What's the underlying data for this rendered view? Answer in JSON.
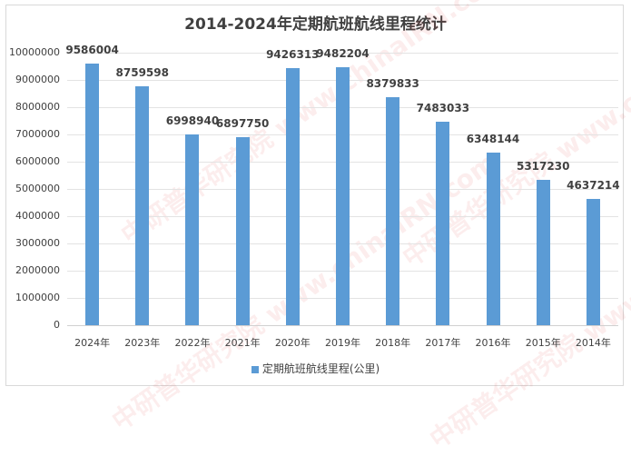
{
  "chart_data": {
    "type": "bar",
    "title": "2014-2024年定期航班航线里程统计",
    "xlabel": "",
    "ylabel": "",
    "ylim": [
      0,
      10000000
    ],
    "yticks": [
      0,
      1000000,
      2000000,
      3000000,
      4000000,
      5000000,
      6000000,
      7000000,
      8000000,
      9000000,
      10000000
    ],
    "grid": true,
    "legend_position": "bottom",
    "categories": [
      "2024年",
      "2023年",
      "2022年",
      "2021年",
      "2020年",
      "2019年",
      "2018年",
      "2017年",
      "2016年",
      "2015年",
      "2014年"
    ],
    "series": [
      {
        "name": "定期航班航线里程(公里)",
        "color": "#5b9bd5",
        "values": [
          9586004,
          8759598,
          6998940,
          6897750,
          9426313,
          9482204,
          8379833,
          7483033,
          6348144,
          5317230,
          4637214
        ]
      }
    ]
  },
  "watermark": "中研普华研究院 www.chinaIRN.com"
}
